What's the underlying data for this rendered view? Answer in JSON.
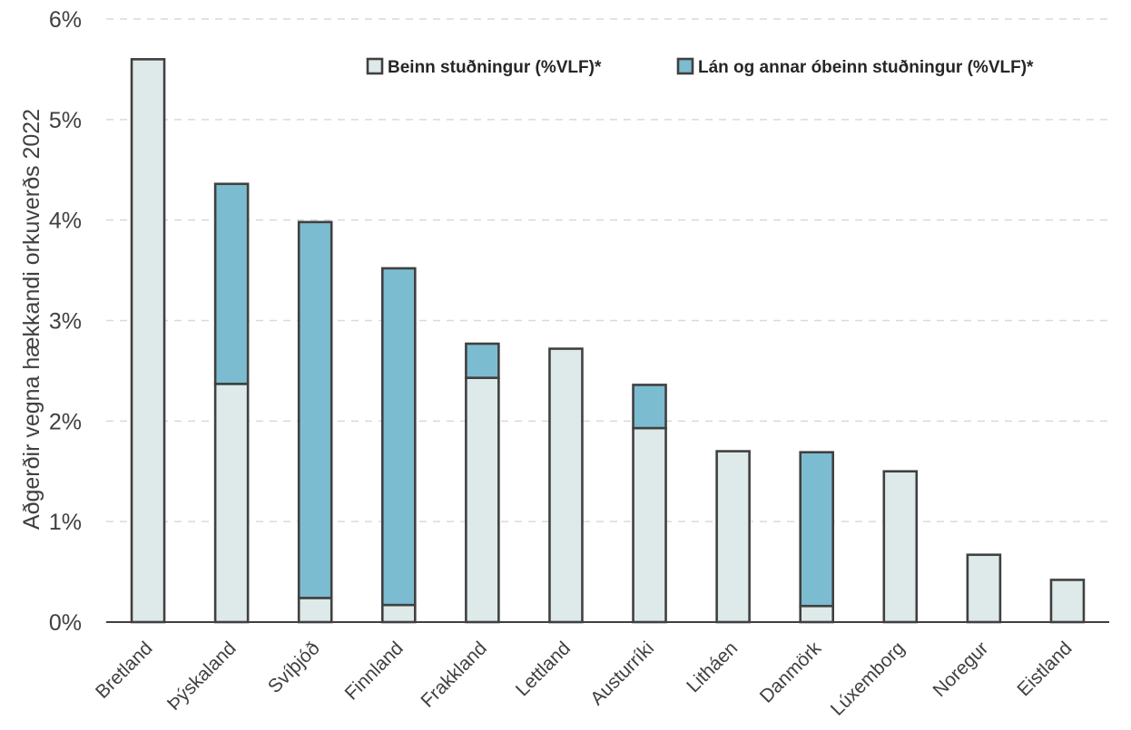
{
  "chart_data": {
    "type": "bar",
    "stacked": true,
    "categories": [
      "Bretland",
      "Þýskaland",
      "Svíþjóð",
      "Finnland",
      "Frakkland",
      "Lettland",
      "Austurríki",
      "Litháen",
      "Danmörk",
      "Lúxemborg",
      "Noregur",
      "Eistland"
    ],
    "series": [
      {
        "name": "Beinn stuðningur (%VLF)*",
        "color": "#deeaea",
        "values": [
          5.6,
          2.37,
          0.24,
          0.17,
          2.43,
          2.72,
          1.93,
          1.7,
          0.16,
          1.5,
          0.67,
          0.42
        ]
      },
      {
        "name": "Lán og annar óbeinn stuðningur (%VLF)*",
        "color": "#7cbcd0",
        "values": [
          0,
          1.99,
          3.74,
          3.35,
          0.34,
          0,
          0.43,
          0,
          1.53,
          0,
          0,
          0
        ]
      }
    ],
    "ylabel": "Aðgerðir vegna hækkandi orkuverðs 2022",
    "xlabel": "",
    "ylim": [
      0,
      6
    ],
    "yticks": [
      0,
      1,
      2,
      3,
      4,
      5,
      6
    ],
    "ytick_labels": [
      "0%",
      "1%",
      "2%",
      "3%",
      "4%",
      "5%",
      "6%"
    ],
    "grid": true,
    "legend_position": "top-right"
  }
}
